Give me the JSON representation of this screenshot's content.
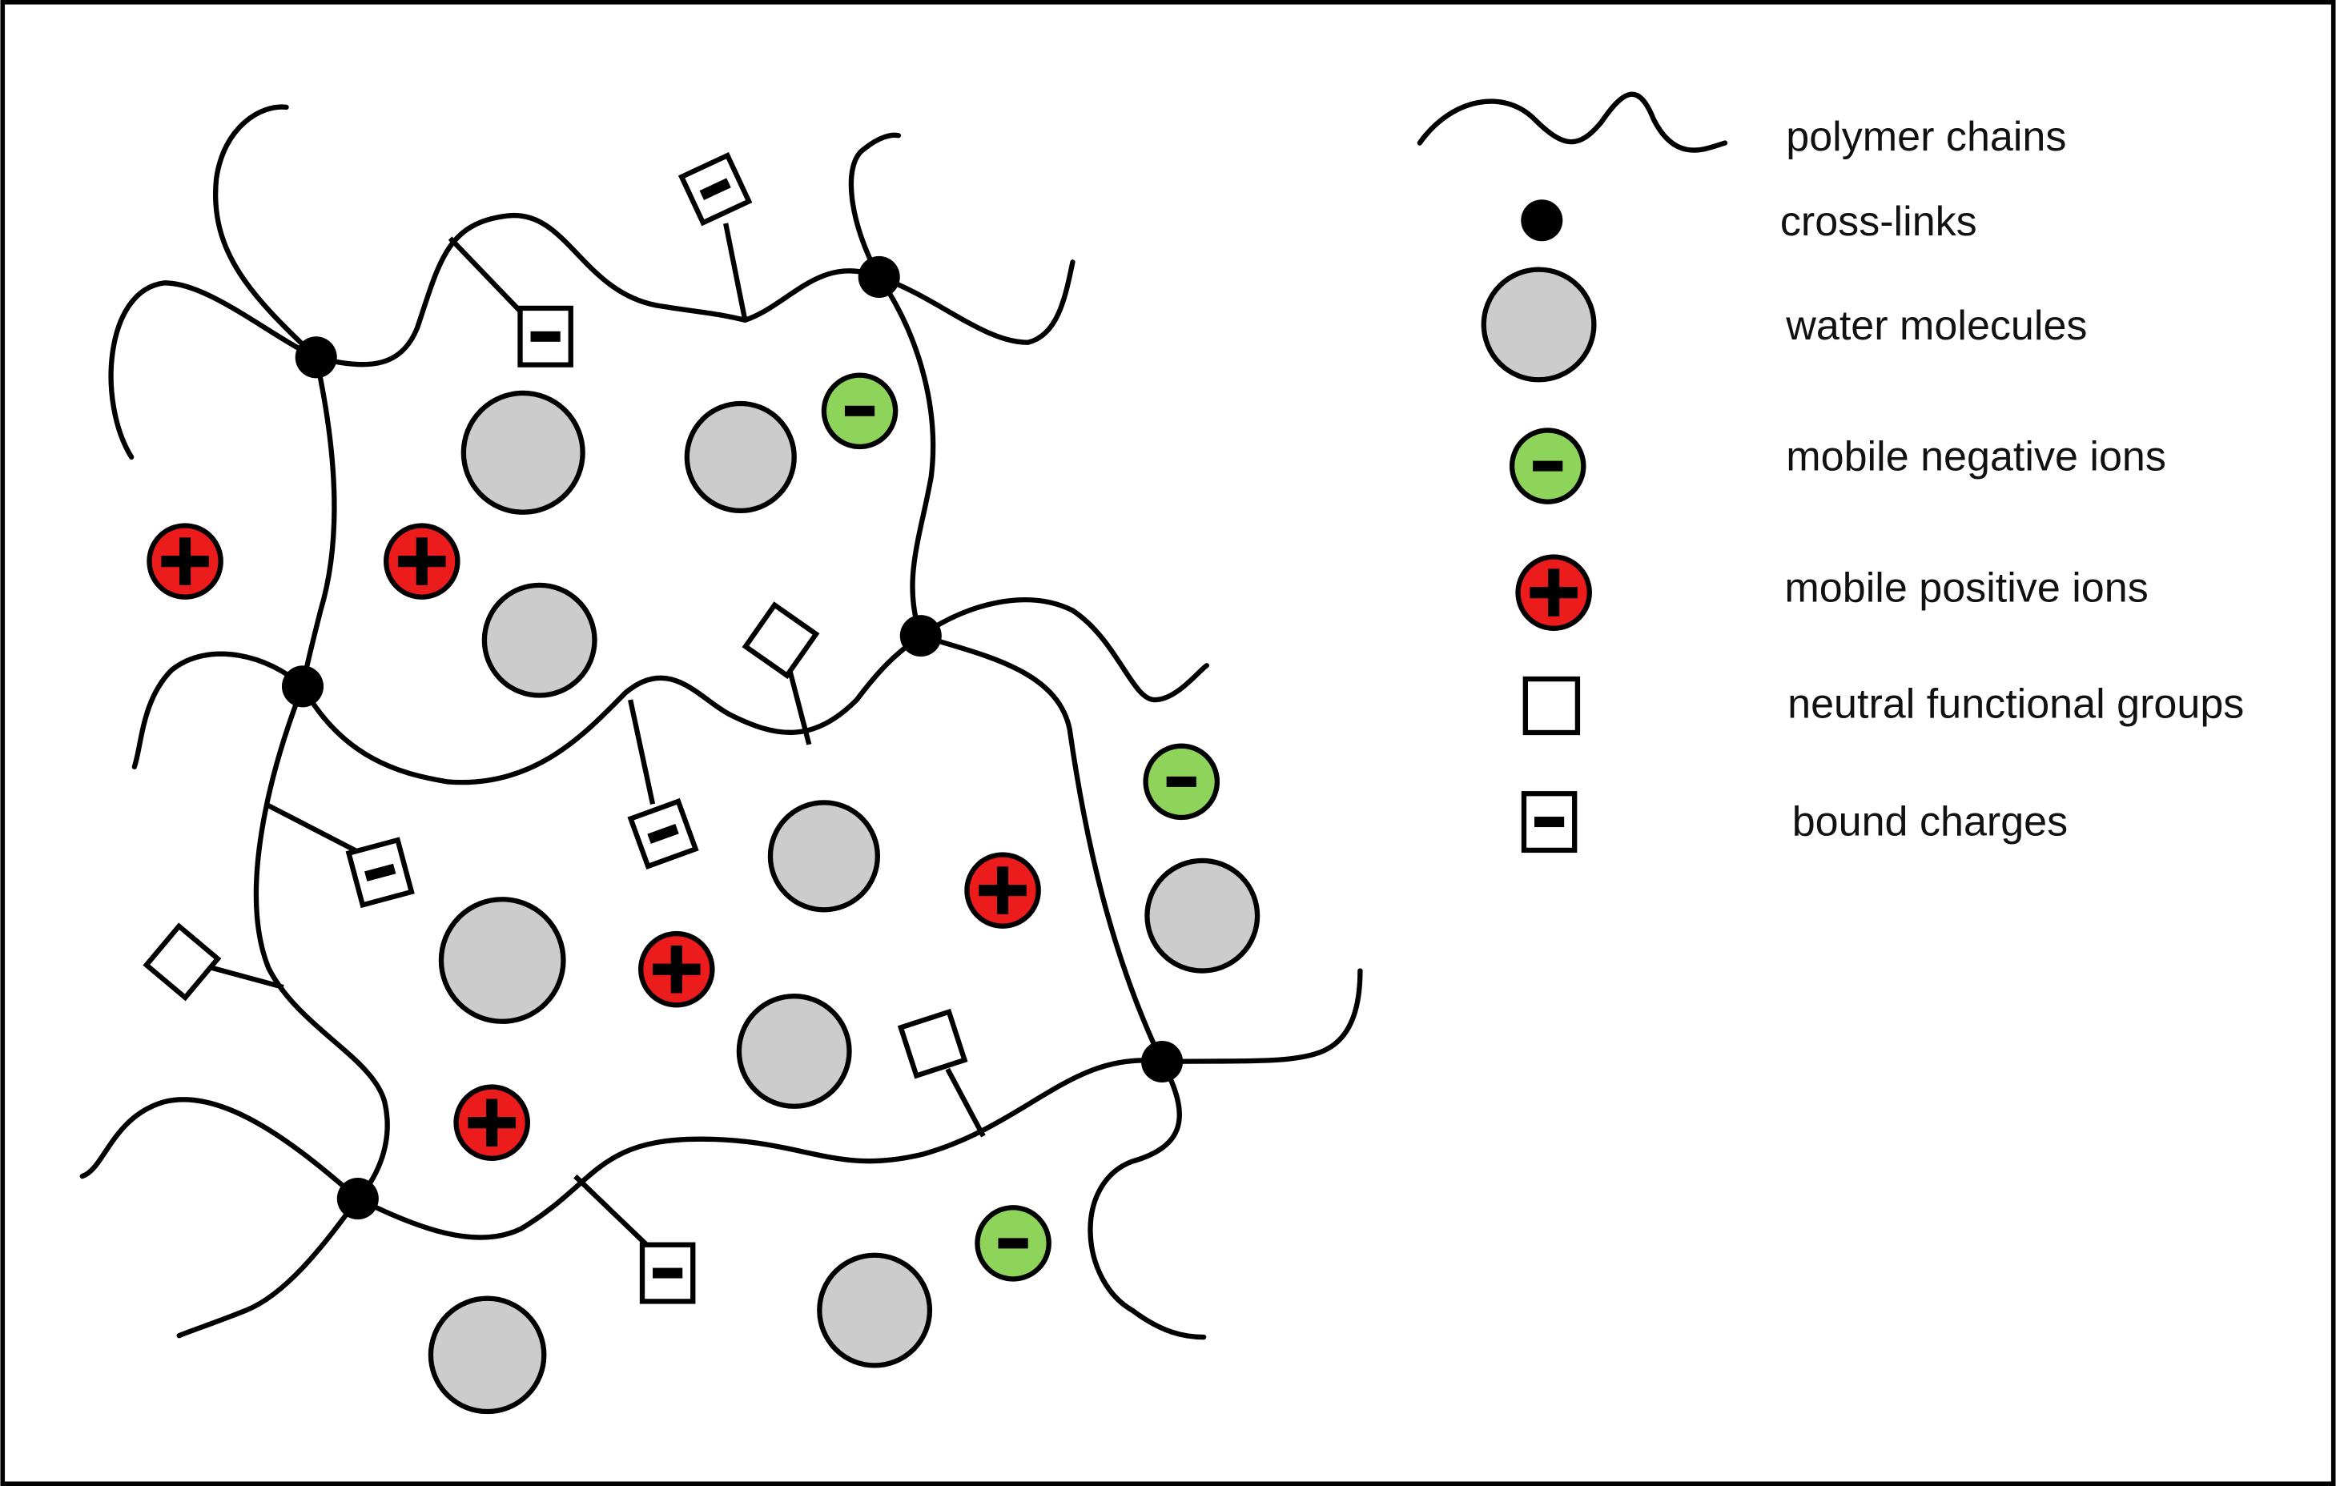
{
  "legend": {
    "polymer_chains": "polymer chains",
    "cross_links": "cross-links",
    "water_molecules": "water molecules",
    "mobile_negative_ions": "mobile negative ions",
    "mobile_positive_ions": "mobile positive ions",
    "neutral_functional_groups": "neutral functional groups",
    "bound_charges": "bound charges"
  },
  "colors": {
    "water": "#cccccc",
    "negative_ion": "#8fd45a",
    "positive_ion": "#ec1c1c",
    "outline": "#000000",
    "background": "#ffffff"
  }
}
